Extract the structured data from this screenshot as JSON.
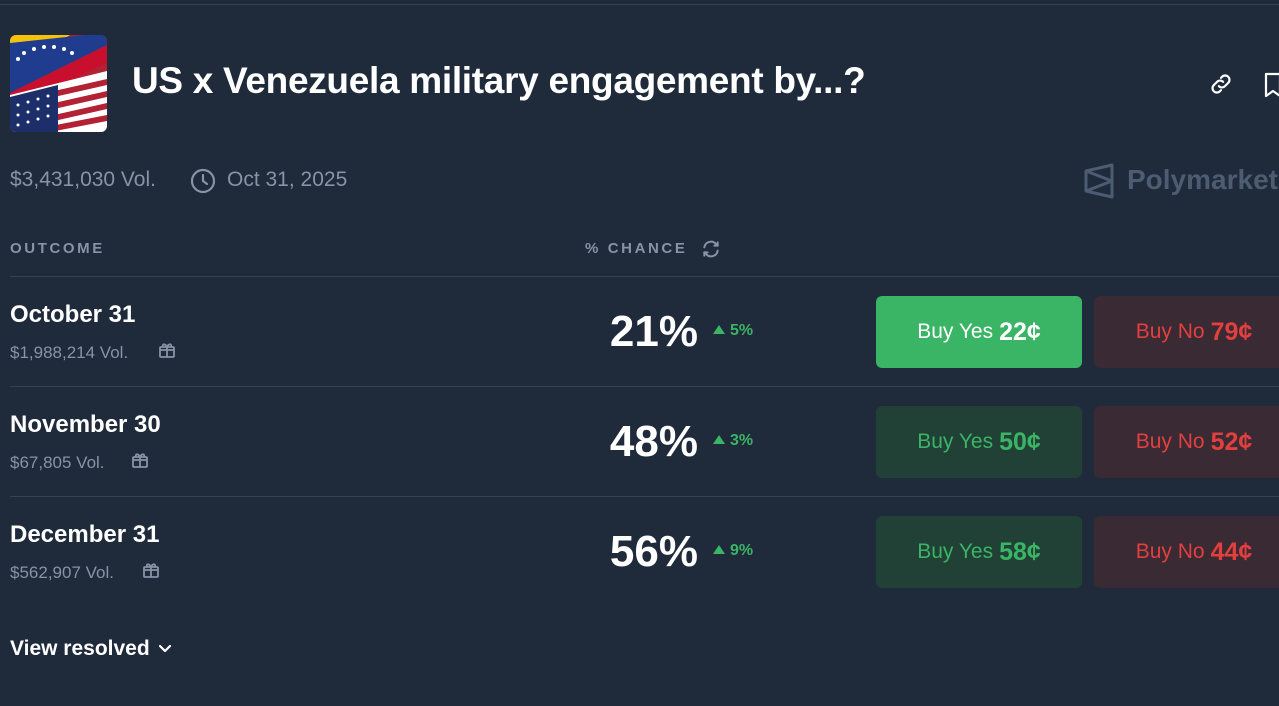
{
  "market": {
    "title": "US x Venezuela military engagement by...?",
    "volume": "$3,431,030 Vol.",
    "end_date": "Oct 31, 2025",
    "brand": "Polymarket"
  },
  "table": {
    "col_outcome": "OUTCOME",
    "col_chance": "% CHANCE",
    "rows": [
      {
        "name": "October 31",
        "volume": "$1,988,214 Vol.",
        "chance": "21%",
        "change": "5%",
        "yes_label": "Buy Yes",
        "yes_price": "22¢",
        "no_label": "Buy No",
        "no_price": "79¢"
      },
      {
        "name": "November 30",
        "volume": "$67,805 Vol.",
        "chance": "48%",
        "change": "3%",
        "yes_label": "Buy Yes",
        "yes_price": "50¢",
        "no_label": "Buy No",
        "no_price": "52¢"
      },
      {
        "name": "December 31",
        "volume": "$562,907 Vol.",
        "chance": "56%",
        "change": "9%",
        "yes_label": "Buy Yes",
        "yes_price": "58¢",
        "no_label": "Buy No",
        "no_price": "44¢"
      }
    ]
  },
  "footer": {
    "view_resolved": "View resolved"
  },
  "colors": {
    "background": "#1f2a3a",
    "green": "#3ab465",
    "red": "#e23f3f",
    "muted": "#8793a7"
  },
  "icons": [
    "link-icon",
    "bookmark-icon",
    "clock-icon",
    "polymarket-logo-icon",
    "refresh-icon",
    "gift-icon",
    "chevron-down-icon",
    "triangle-up-icon"
  ]
}
